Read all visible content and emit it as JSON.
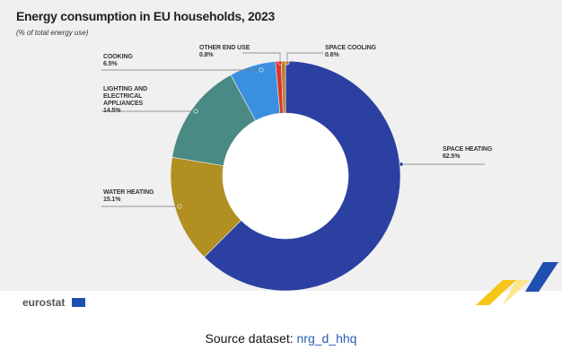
{
  "chart_data": {
    "type": "donut",
    "title": "Energy consumption in EU households, 2023",
    "subtitle": "(% of total energy use)",
    "categories": [
      "SPACE HEATING",
      "WATER HEATING",
      "LIGHTING AND ELECTRICAL APPLIANCES",
      "COOKING",
      "OTHER END USE",
      "SPACE COOLING"
    ],
    "values": [
      62.5,
      15.1,
      14.5,
      6.5,
      0.8,
      0.6
    ],
    "value_labels": [
      "62.5%",
      "15.1%",
      "14.5%",
      "6.5%",
      "0.8%",
      "0.6%"
    ],
    "colors": [
      "#2b40a1",
      "#b18f22",
      "#4a8a84",
      "#3a8fe0",
      "#d7352c",
      "#c07a2b"
    ]
  },
  "footer": {
    "brand": "eurostat",
    "source_label": "Source dataset:",
    "source_link": "nrg_d_hhq"
  }
}
